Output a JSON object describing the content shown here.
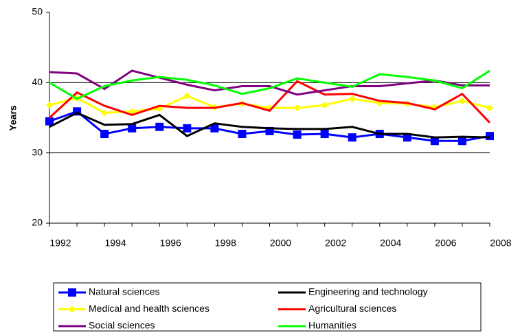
{
  "chart_data": {
    "type": "line",
    "y_label": "Years",
    "x": [
      1992,
      1993,
      1994,
      1995,
      1996,
      1997,
      1998,
      1999,
      2000,
      2001,
      2002,
      2003,
      2004,
      2005,
      2006,
      2007,
      2008
    ],
    "xlim": [
      1992,
      2008
    ],
    "xticks": [
      1992,
      1994,
      1996,
      1998,
      2000,
      2002,
      2004,
      2006,
      2008
    ],
    "ylim": [
      20,
      50
    ],
    "yticks": [
      20,
      30,
      40,
      50
    ],
    "grid": true,
    "legend": "bottom",
    "series": [
      {
        "name": "Natural sciences",
        "color": "#0000ff",
        "marker": "square",
        "values": [
          34.5,
          35.9,
          32.7,
          33.5,
          33.7,
          33.5,
          33.5,
          32.7,
          33.1,
          32.6,
          32.7,
          32.2,
          32.7,
          32.2,
          31.7,
          31.7,
          32.4
        ]
      },
      {
        "name": "Engineering and technology",
        "color": "#000000",
        "values": [
          33.7,
          35.7,
          34.0,
          34.1,
          35.4,
          32.4,
          34.2,
          33.7,
          33.5,
          33.4,
          33.4,
          33.7,
          32.7,
          32.7,
          32.2,
          32.3,
          32.2
        ]
      },
      {
        "name": "Medical and health sciences",
        "color": "#ffff00",
        "marker": "diamond",
        "values": [
          36.8,
          37.8,
          35.7,
          35.9,
          36.3,
          38.1,
          36.5,
          37.0,
          36.4,
          36.4,
          36.8,
          37.7,
          37.1,
          37.0,
          36.5,
          37.4,
          36.4
        ]
      },
      {
        "name": "Agricultural sciences",
        "color": "#ff0000",
        "values": [
          35.0,
          38.6,
          36.7,
          35.4,
          36.7,
          36.4,
          36.4,
          37.1,
          36.0,
          40.2,
          38.3,
          38.4,
          37.4,
          37.1,
          36.2,
          38.4,
          34.3
        ]
      },
      {
        "name": "Social sciences",
        "color": "#800080",
        "values": [
          41.5,
          41.3,
          39.1,
          41.7,
          40.7,
          39.7,
          38.9,
          39.5,
          39.5,
          38.3,
          38.9,
          39.5,
          39.5,
          39.9,
          40.3,
          39.6,
          39.6
        ]
      },
      {
        "name": "Humanities",
        "color": "#00ff00",
        "values": [
          40.0,
          37.7,
          39.5,
          40.3,
          40.8,
          40.4,
          39.6,
          38.4,
          39.2,
          40.6,
          40.0,
          39.4,
          41.2,
          40.8,
          40.3,
          39.2,
          41.7
        ]
      }
    ]
  }
}
